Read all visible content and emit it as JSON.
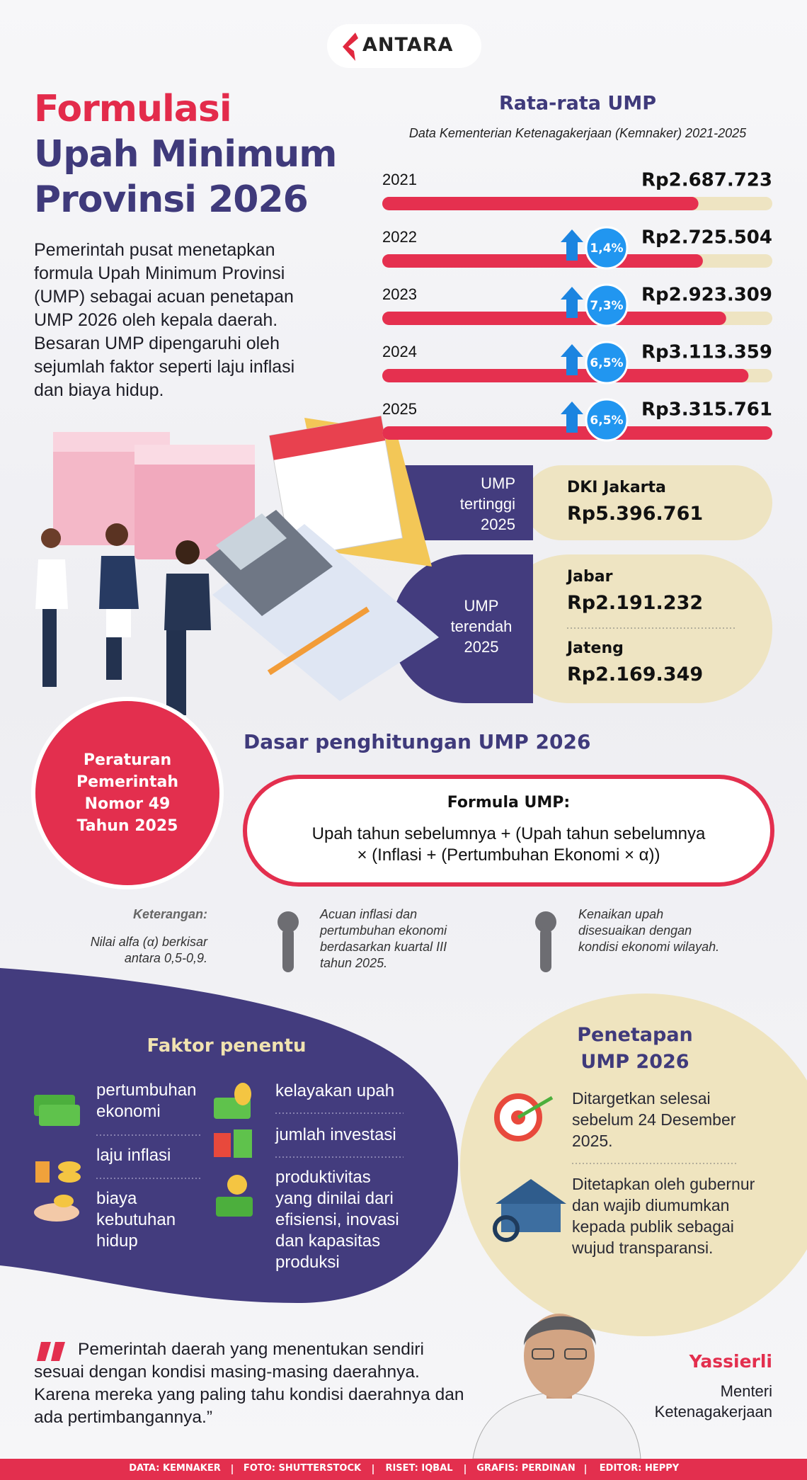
{
  "header": {
    "logo": "ANTARA",
    "title_lines": [
      "Formulasi",
      "Upah Minimum",
      "Provinsi 2026"
    ],
    "intro": "Pemerintah pusat menetapkan formula Upah Minimum Provinsi (UMP) sebagai acuan penetapan UMP 2026 oleh kepala daerah. Besaran UMP dipengaruhi oleh sejumlah faktor seperti laju inflasi dan biaya hidup."
  },
  "chart_data": {
    "type": "bar",
    "orientation": "horizontal",
    "title": "Rata-rata UMP",
    "subtitle": "Data Kementerian Ketenagakerjaan (Kemnaker) 2021-2025",
    "categories": [
      "2021",
      "2022",
      "2023",
      "2024",
      "2025"
    ],
    "values": [
      2687723,
      2725504,
      2923309,
      3113359,
      3315761
    ],
    "value_labels": [
      "Rp2.687.723",
      "Rp2.725.504",
      "Rp2.923.309",
      "Rp3.113.359",
      "Rp3.315.761"
    ],
    "growth_labels": [
      null,
      "1,4%",
      "7,3%",
      "6,5%",
      "6,5%"
    ],
    "color": "#e5304f",
    "track_color": "#eee4c2",
    "xlim": [
      0,
      3315761
    ]
  },
  "extremes": {
    "highest": {
      "label": "UMP tertinggi 2025",
      "entries": [
        {
          "region": "DKI Jakarta",
          "value": "Rp5.396.761"
        }
      ]
    },
    "lowest": {
      "label": "UMP terendah 2025",
      "entries": [
        {
          "region": "Jabar",
          "value": "Rp2.191.232"
        },
        {
          "region": "Jateng",
          "value": "Rp2.169.349"
        }
      ]
    }
  },
  "regulation": "Peraturan Pemerintah Nomor 49 Tahun 2025",
  "formula": {
    "heading": "Dasar penghitungan UMP 2026",
    "title": "Formula UMP:",
    "lines": [
      "Upah tahun sebelumnya + (Upah tahun sebelumnya",
      "× (Inflasi + (Pertumbuhan Ekonomi × α))"
    ]
  },
  "notes": {
    "heading": "Keterangan:",
    "items": [
      "Nilai alfa (α) berkisar antara 0,5-0,9.",
      "Acuan inflasi dan pertumbuhan ekonomi berdasarkan kuartal III tahun 2025.",
      "Kenaikan upah disesuaikan dengan kondisi ekonomi wilayah."
    ]
  },
  "factors": {
    "heading": "Faktor penentu",
    "items": [
      "pertumbuhan ekonomi",
      "laju inflasi",
      "biaya kebutuhan hidup",
      "kelayakan upah",
      "jumlah investasi",
      "produktivitas yang dinilai dari efisiensi, inovasi dan kapasitas produksi"
    ]
  },
  "determination": {
    "heading": "Penetapan UMP 2026",
    "items": [
      "Ditargetkan selesai sebelum 24 Desember 2025.",
      "Ditetapkan oleh gubernur dan wajib diumumkan kepada publik sebagai wujud transparansi."
    ]
  },
  "quote": {
    "text": "Pemerintah daerah yang menentukan sendiri sesuai dengan kondisi masing-masing daerahnya. Karena mereka yang paling tahu kondisi daerahnya dan ada pertimbangannya.”",
    "name": "Yassierli",
    "role": "Menteri Ketenagakerjaan"
  },
  "credits": [
    "DATA: KEMNAKER",
    "FOTO: SHUTTERSTOCK",
    "RISET: IQBAL",
    "GRAFIS: PERDINAN",
    "EDITOR: HEPPY"
  ]
}
